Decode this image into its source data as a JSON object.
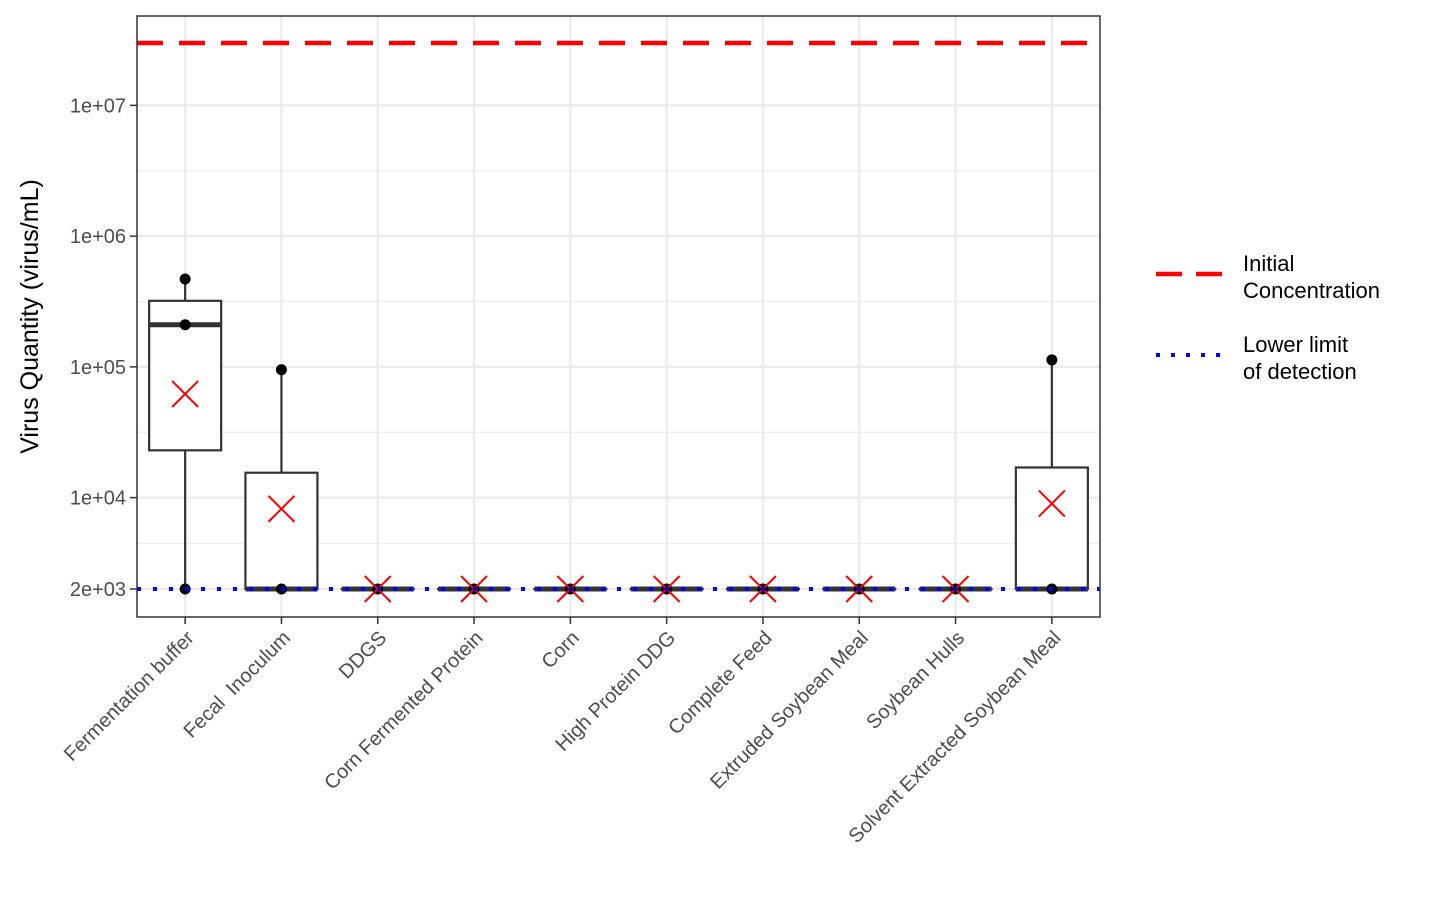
{
  "chart_data": {
    "type": "boxplot",
    "title": "",
    "xlabel": "",
    "ylabel": "Virus Quantity (virus/mL)",
    "y_scale": "log10",
    "ylim": [
      1300,
      31000000
    ],
    "y_ticks": [
      2000,
      10000,
      100000,
      1000000,
      10000000
    ],
    "y_tick_labels": [
      "2e+03",
      "1e+04",
      "1e+05",
      "1e+06",
      "1e+07"
    ],
    "grid": true,
    "legend_position": "right",
    "categories": [
      "Fermentation buffer",
      "Fecal  Inoculum",
      "DDGS",
      "Corn Fermented Protein",
      "Corn",
      "High Protein DDG",
      "Complete Feed",
      "Extruded Soybean Meal",
      "Soybean Hulls",
      "Solvent Extracted Soybean Meal"
    ],
    "boxes": [
      {
        "whisker_low": 2000,
        "q1": 23000,
        "median": 210000,
        "q3": 320000,
        "whisker_high": 470000,
        "mean": 62000,
        "points": [
          2000,
          210000,
          470000
        ]
      },
      {
        "whisker_low": 2000,
        "q1": 2000,
        "median": 2000,
        "q3": 15500,
        "whisker_high": 95000,
        "mean": 8200,
        "points": [
          2000,
          95000
        ]
      },
      {
        "whisker_low": 2000,
        "q1": 2000,
        "median": 2000,
        "q3": 2000,
        "whisker_high": 2000,
        "mean": 2000,
        "points": [
          2000
        ]
      },
      {
        "whisker_low": 2000,
        "q1": 2000,
        "median": 2000,
        "q3": 2000,
        "whisker_high": 2000,
        "mean": 2000,
        "points": [
          2000
        ]
      },
      {
        "whisker_low": 2000,
        "q1": 2000,
        "median": 2000,
        "q3": 2000,
        "whisker_high": 2000,
        "mean": 2000,
        "points": [
          2000
        ]
      },
      {
        "whisker_low": 2000,
        "q1": 2000,
        "median": 2000,
        "q3": 2000,
        "whisker_high": 2000,
        "mean": 2000,
        "points": [
          2000
        ]
      },
      {
        "whisker_low": 2000,
        "q1": 2000,
        "median": 2000,
        "q3": 2000,
        "whisker_high": 2000,
        "mean": 2000,
        "points": [
          2000
        ]
      },
      {
        "whisker_low": 2000,
        "q1": 2000,
        "median": 2000,
        "q3": 2000,
        "whisker_high": 2000,
        "mean": 2000,
        "points": [
          2000
        ]
      },
      {
        "whisker_low": 2000,
        "q1": 2000,
        "median": 2000,
        "q3": 2000,
        "whisker_high": 2000,
        "mean": 2000,
        "points": [
          2000
        ]
      },
      {
        "whisker_low": 2000,
        "q1": 2000,
        "median": 2000,
        "q3": 17000,
        "whisker_high": 113000,
        "mean": 9000,
        "points": [
          2000,
          113000
        ]
      }
    ],
    "reference_lines": [
      {
        "name": "Initial Concentration",
        "y": 30000000,
        "color": "#ff0000",
        "style": "dashed"
      },
      {
        "name": "Lower limit of detection",
        "y": 2000,
        "color": "#0000ff",
        "style": "dotted"
      }
    ],
    "legend": [
      {
        "line1": "Initial",
        "line2": "Concentration",
        "color": "#ff0000",
        "style": "dashed"
      },
      {
        "line1": "Lower limit",
        "line2": "of detection",
        "color": "#0000ff",
        "style": "dotted"
      }
    ],
    "colors": {
      "box": "#333333",
      "point": "#000000",
      "mean_marker": "#ff0000",
      "grid": "#ebebeb",
      "panel_border": "#333333"
    }
  }
}
